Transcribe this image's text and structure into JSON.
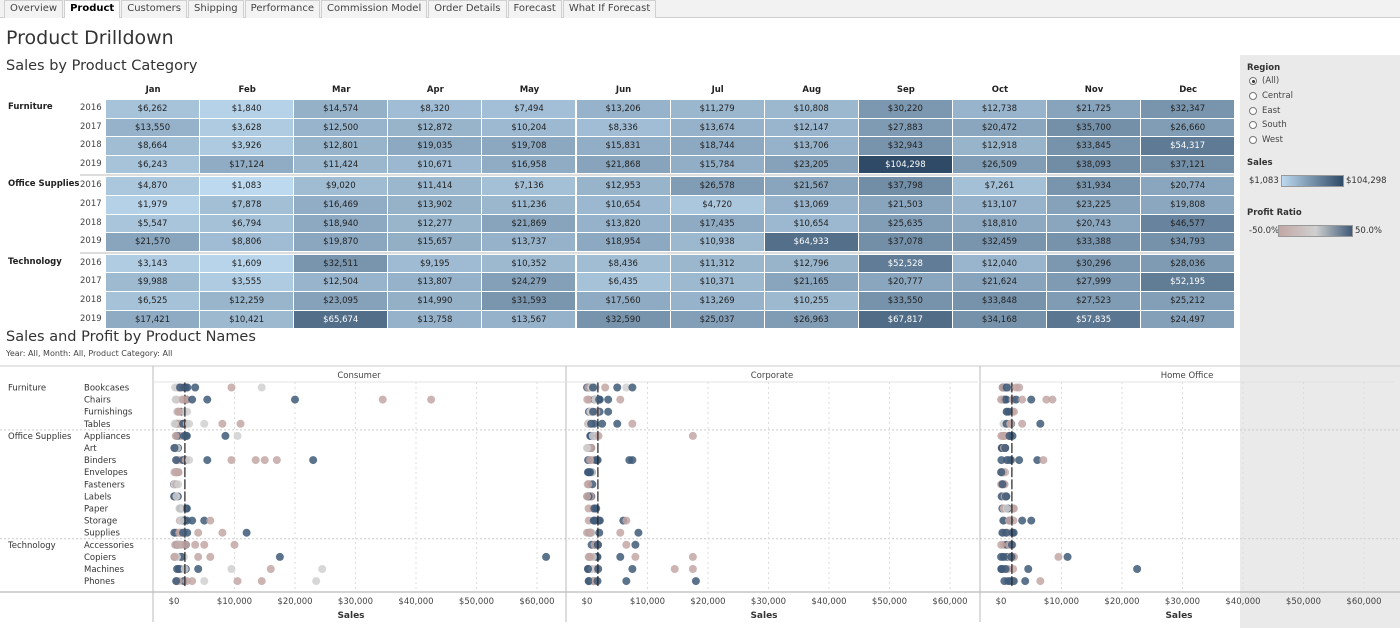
{
  "tabs": [
    "Overview",
    "Product",
    "Customers",
    "Shipping",
    "Performance",
    "Commission Model",
    "Order Details",
    "Forecast",
    "What If Forecast"
  ],
  "active_tab": "Product",
  "page_title": "Product Drilldown",
  "heatmap": {
    "title": "Sales by Product Category",
    "months": [
      "Jan",
      "Feb",
      "Mar",
      "Apr",
      "May",
      "Jun",
      "Jul",
      "Aug",
      "Sep",
      "Oct",
      "Nov",
      "Dec"
    ],
    "groups": [
      {
        "category": "Furniture",
        "rows": [
          {
            "year": "2016",
            "values": [
              "$6,262",
              "$1,840",
              "$14,574",
              "$8,320",
              "$7,494",
              "$13,206",
              "$11,279",
              "$10,808",
              "$30,220",
              "$12,738",
              "$21,725",
              "$32,347"
            ]
          },
          {
            "year": "2017",
            "values": [
              "$13,550",
              "$3,628",
              "$12,500",
              "$12,872",
              "$10,204",
              "$8,336",
              "$13,674",
              "$12,147",
              "$27,883",
              "$20,472",
              "$35,700",
              "$26,660"
            ]
          },
          {
            "year": "2018",
            "values": [
              "$8,664",
              "$3,926",
              "$12,801",
              "$19,035",
              "$19,708",
              "$15,831",
              "$18,744",
              "$13,706",
              "$32,943",
              "$12,918",
              "$33,845",
              "$54,317"
            ]
          },
          {
            "year": "2019",
            "values": [
              "$6,243",
              "$17,124",
              "$11,424",
              "$10,671",
              "$16,958",
              "$21,868",
              "$15,784",
              "$23,205",
              "$104,298",
              "$26,509",
              "$38,093",
              "$37,121"
            ]
          }
        ]
      },
      {
        "category": "Office Supplies",
        "rows": [
          {
            "year": "2016",
            "values": [
              "$4,870",
              "$1,083",
              "$9,020",
              "$11,414",
              "$7,136",
              "$12,953",
              "$26,578",
              "$21,567",
              "$37,798",
              "$7,261",
              "$31,934",
              "$20,774"
            ]
          },
          {
            "year": "2017",
            "values": [
              "$1,979",
              "$7,878",
              "$16,469",
              "$13,902",
              "$11,236",
              "$10,654",
              "$4,720",
              "$13,069",
              "$21,503",
              "$13,107",
              "$23,225",
              "$19,808"
            ]
          },
          {
            "year": "2018",
            "values": [
              "$5,547",
              "$6,794",
              "$18,940",
              "$12,277",
              "$21,869",
              "$13,820",
              "$17,435",
              "$10,654",
              "$25,635",
              "$18,810",
              "$20,743",
              "$46,577"
            ]
          },
          {
            "year": "2019",
            "values": [
              "$21,570",
              "$8,806",
              "$19,870",
              "$15,657",
              "$13,737",
              "$18,954",
              "$10,938",
              "$64,933",
              "$37,078",
              "$32,459",
              "$33,388",
              "$34,793"
            ]
          }
        ]
      },
      {
        "category": "Technology",
        "rows": [
          {
            "year": "2016",
            "values": [
              "$3,143",
              "$1,609",
              "$32,511",
              "$9,195",
              "$10,352",
              "$8,436",
              "$11,312",
              "$12,796",
              "$52,528",
              "$12,040",
              "$30,296",
              "$28,036"
            ]
          },
          {
            "year": "2017",
            "values": [
              "$9,988",
              "$3,555",
              "$12,504",
              "$13,807",
              "$24,279",
              "$6,435",
              "$10,371",
              "$21,165",
              "$20,777",
              "$21,624",
              "$27,999",
              "$52,195"
            ]
          },
          {
            "year": "2018",
            "values": [
              "$6,525",
              "$12,259",
              "$23,095",
              "$14,990",
              "$31,593",
              "$17,560",
              "$13,269",
              "$10,255",
              "$33,550",
              "$33,848",
              "$27,523",
              "$25,212"
            ]
          },
          {
            "year": "2019",
            "values": [
              "$17,421",
              "$10,421",
              "$65,674",
              "$13,758",
              "$13,567",
              "$32,590",
              "$25,037",
              "$26,963",
              "$67,817",
              "$34,168",
              "$57,835",
              "$24,497"
            ]
          }
        ]
      }
    ]
  },
  "filters": {
    "region_title": "Region",
    "region_options": [
      "(All)",
      "Central",
      "East",
      "South",
      "West"
    ],
    "region_selected": "(All)",
    "sales_title": "Sales",
    "sales_min": "$1,083",
    "sales_max": "$104,298",
    "profit_title": "Profit Ratio",
    "profit_min": "-50.0%",
    "profit_max": "50.0%"
  },
  "colors": {
    "heat_low": "#bcd9ef",
    "heat_high": "#2f4a66",
    "profit_neg": "#c2a7a4",
    "profit_mid": "#d0d0d0",
    "profit_pos": "#3f5a78"
  },
  "scatter": {
    "title": "Sales and Profit by Product Names",
    "subtitle": "Year: All, Month: All, Product Category: All",
    "segments": [
      "Consumer",
      "Corporate",
      "Home Office"
    ],
    "axis_title": "Sales",
    "ticks": [
      "$0",
      "$10,000",
      "$20,000",
      "$30,000",
      "$40,000",
      "$50,000",
      "$60,000"
    ],
    "groups": [
      {
        "category": "Furniture",
        "items": [
          "Bookcases",
          "Chairs",
          "Furnishings",
          "Tables"
        ]
      },
      {
        "category": "Office Supplies",
        "items": [
          "Appliances",
          "Art",
          "Binders",
          "Envelopes",
          "Fasteners",
          "Labels",
          "Paper",
          "Storage",
          "Supplies"
        ]
      },
      {
        "category": "Technology",
        "items": [
          "Accessories",
          "Copiers",
          "Machines",
          "Phones"
        ]
      }
    ]
  },
  "chart_data": {
    "type": "scatter",
    "title": "Sales and Profit by Product Names",
    "xlabel": "Sales",
    "xlim": [
      0,
      62000
    ],
    "panels": [
      "Consumer",
      "Corporate",
      "Home Office"
    ],
    "outliers": [
      {
        "panel": "Consumer",
        "item": "Bookcases",
        "sales": [
          1000,
          2200,
          3500,
          9500,
          14500
        ]
      },
      {
        "panel": "Consumer",
        "item": "Chairs",
        "sales": [
          1500,
          3000,
          5500,
          20000,
          34500,
          42500
        ]
      },
      {
        "panel": "Consumer",
        "item": "Tables",
        "sales": [
          2500,
          5000,
          8000,
          11000
        ]
      },
      {
        "panel": "Consumer",
        "item": "Appliances",
        "sales": [
          2000,
          8500,
          10500
        ]
      },
      {
        "panel": "Consumer",
        "item": "Binders",
        "sales": [
          2500,
          5500,
          9500,
          13500,
          15000,
          17000,
          23000
        ]
      },
      {
        "panel": "Consumer",
        "item": "Storage",
        "sales": [
          3000,
          5000,
          6000
        ]
      },
      {
        "panel": "Consumer",
        "item": "Supplies",
        "sales": [
          1500,
          4000,
          8000,
          12000
        ]
      },
      {
        "panel": "Consumer",
        "item": "Accessories",
        "sales": [
          2000,
          3500,
          5000,
          10000
        ]
      },
      {
        "panel": "Consumer",
        "item": "Copiers",
        "sales": [
          4000,
          6000,
          17500,
          61500
        ]
      },
      {
        "panel": "Consumer",
        "item": "Machines",
        "sales": [
          4000,
          9500,
          16000,
          24500
        ]
      },
      {
        "panel": "Consumer",
        "item": "Phones",
        "sales": [
          3000,
          5000,
          10500,
          14500,
          23500
        ]
      },
      {
        "panel": "Corporate",
        "item": "Bookcases",
        "sales": [
          1000,
          3000,
          5000,
          6500,
          7500
        ]
      },
      {
        "panel": "Corporate",
        "item": "Chairs",
        "sales": [
          2000,
          3500,
          5500
        ]
      },
      {
        "panel": "Corporate",
        "item": "Furnishings",
        "sales": [
          1000,
          3500
        ]
      },
      {
        "panel": "Corporate",
        "item": "Tables",
        "sales": [
          2500,
          5000,
          7500
        ]
      },
      {
        "panel": "Corporate",
        "item": "Appliances",
        "sales": [
          17500
        ]
      },
      {
        "panel": "Corporate",
        "item": "Binders",
        "sales": [
          7000,
          7500
        ]
      },
      {
        "panel": "Corporate",
        "item": "Storage",
        "sales": [
          6000,
          6500
        ]
      },
      {
        "panel": "Corporate",
        "item": "Supplies",
        "sales": [
          5500,
          8500
        ]
      },
      {
        "panel": "Corporate",
        "item": "Accessories",
        "sales": [
          6500,
          8000
        ]
      },
      {
        "panel": "Corporate",
        "item": "Copiers",
        "sales": [
          5500,
          8000,
          17500
        ]
      },
      {
        "panel": "Corporate",
        "item": "Machines",
        "sales": [
          7500,
          14500,
          17500
        ]
      },
      {
        "panel": "Corporate",
        "item": "Phones",
        "sales": [
          6500,
          18000
        ]
      },
      {
        "panel": "Home Office",
        "item": "Bookcases",
        "sales": [
          1000,
          2500,
          3000
        ]
      },
      {
        "panel": "Home Office",
        "item": "Chairs",
        "sales": [
          2500,
          3500,
          5000,
          7500,
          8500
        ]
      },
      {
        "panel": "Home Office",
        "item": "Tables",
        "sales": [
          3500,
          6500
        ]
      },
      {
        "panel": "Home Office",
        "item": "Binders",
        "sales": [
          3000,
          6000,
          7000
        ]
      },
      {
        "panel": "Home Office",
        "item": "Storage",
        "sales": [
          3500,
          5000
        ]
      },
      {
        "panel": "Home Office",
        "item": "Copiers",
        "sales": [
          9500,
          11000
        ]
      },
      {
        "panel": "Home Office",
        "item": "Machines",
        "sales": [
          4500,
          22500
        ]
      },
      {
        "panel": "Home Office",
        "item": "Phones",
        "sales": [
          4000,
          6500
        ]
      }
    ]
  }
}
